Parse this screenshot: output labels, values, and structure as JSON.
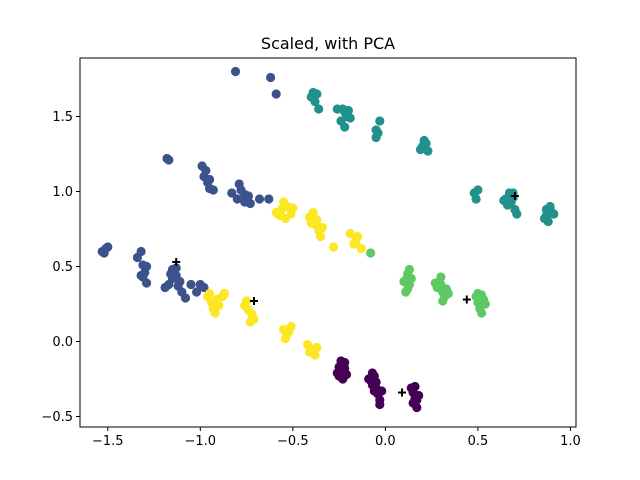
{
  "chart_data": {
    "type": "scatter",
    "title": "Scaled, with PCA",
    "xlabel": "",
    "ylabel": "",
    "xlim": [
      -1.65,
      1.03
    ],
    "ylim": [
      -0.57,
      1.89
    ],
    "xticks": [
      -1.5,
      -1.0,
      -0.5,
      0.0,
      0.5,
      1.0
    ],
    "xtick_labels": [
      "−1.5",
      "−1.0",
      "−0.5",
      "0.0",
      "0.5",
      "1.0"
    ],
    "yticks": [
      -0.5,
      0.0,
      0.5,
      1.0,
      1.5
    ],
    "ytick_labels": [
      "−0.5",
      "0.0",
      "0.5",
      "1.0",
      "1.5"
    ],
    "grid": false,
    "legend": "none",
    "colors": {
      "cluster0": "#440154",
      "cluster1": "#3b528b",
      "cluster2": "#21918c",
      "cluster3": "#5ec962",
      "cluster4": "#fde725",
      "centroid": "#000000"
    },
    "series": [
      {
        "cluster": 0,
        "points": [
          [
            -0.24,
            -0.2
          ],
          [
            -0.23,
            -0.16
          ],
          [
            -0.25,
            -0.23
          ],
          [
            -0.22,
            -0.18
          ],
          [
            -0.24,
            -0.13
          ],
          [
            -0.21,
            -0.22
          ],
          [
            -0.26,
            -0.21
          ],
          [
            -0.23,
            -0.25
          ],
          [
            -0.22,
            -0.14
          ],
          [
            -0.25,
            -0.17
          ],
          [
            -0.08,
            -0.26
          ],
          [
            -0.07,
            -0.29
          ],
          [
            -0.05,
            -0.31
          ],
          [
            -0.09,
            -0.25
          ],
          [
            -0.06,
            -0.23
          ],
          [
            -0.04,
            -0.35
          ],
          [
            -0.03,
            -0.39
          ],
          [
            -0.07,
            -0.21
          ],
          [
            -0.02,
            -0.33
          ],
          [
            -0.05,
            -0.27
          ],
          [
            -0.06,
            -0.33
          ],
          [
            -0.03,
            -0.42
          ],
          [
            0.15,
            -0.34
          ],
          [
            0.16,
            -0.38
          ],
          [
            0.17,
            -0.44
          ],
          [
            0.14,
            -0.31
          ],
          [
            0.18,
            -0.36
          ],
          [
            0.15,
            -0.41
          ],
          [
            0.16,
            -0.3
          ],
          [
            0.17,
            -0.39
          ]
        ]
      },
      {
        "cluster": 1,
        "points": [
          [
            -0.81,
            1.8
          ],
          [
            -0.62,
            1.76
          ],
          [
            -0.59,
            1.65
          ],
          [
            -1.18,
            1.22
          ],
          [
            -1.17,
            1.21
          ],
          [
            -0.99,
            1.17
          ],
          [
            -0.97,
            1.14
          ],
          [
            -0.98,
            1.1
          ],
          [
            -0.96,
            1.06
          ],
          [
            -0.95,
            1.02
          ],
          [
            -0.93,
            1.01
          ],
          [
            -0.95,
            1.08
          ],
          [
            -0.83,
            0.99
          ],
          [
            -0.79,
            1.05
          ],
          [
            -0.78,
            1.01
          ],
          [
            -0.76,
            0.98
          ],
          [
            -0.74,
            0.97
          ],
          [
            -0.8,
            0.95
          ],
          [
            -0.76,
            0.93
          ],
          [
            -0.73,
            0.92
          ],
          [
            -0.68,
            0.95
          ],
          [
            -0.63,
            0.95
          ],
          [
            -1.53,
            0.6
          ],
          [
            -1.51,
            0.62
          ],
          [
            -1.52,
            0.59
          ],
          [
            -1.5,
            0.63
          ],
          [
            -1.34,
            0.56
          ],
          [
            -1.31,
            0.51
          ],
          [
            -1.3,
            0.46
          ],
          [
            -1.32,
            0.44
          ],
          [
            -1.29,
            0.5
          ],
          [
            -1.31,
            0.43
          ],
          [
            -1.29,
            0.39
          ],
          [
            -1.32,
            0.6
          ],
          [
            -1.19,
            0.36
          ],
          [
            -1.17,
            0.38
          ],
          [
            -1.15,
            0.42
          ],
          [
            -1.13,
            0.44
          ],
          [
            -1.12,
            0.37
          ],
          [
            -1.1,
            0.33
          ],
          [
            -1.08,
            0.29
          ],
          [
            -1.11,
            0.4
          ],
          [
            -1.15,
            0.48
          ],
          [
            -1.13,
            0.49
          ],
          [
            -1.16,
            0.45
          ],
          [
            -1.05,
            0.38
          ],
          [
            -1.0,
            0.38
          ],
          [
            -0.98,
            0.36
          ],
          [
            -1.02,
            0.33
          ]
        ]
      },
      {
        "cluster": 2,
        "points": [
          [
            -0.39,
            1.66
          ],
          [
            -0.4,
            1.63
          ],
          [
            -0.37,
            1.65
          ],
          [
            -0.38,
            1.6
          ],
          [
            -0.36,
            1.55
          ],
          [
            -0.26,
            1.55
          ],
          [
            -0.22,
            1.53
          ],
          [
            -0.21,
            1.5
          ],
          [
            -0.23,
            1.55
          ],
          [
            -0.19,
            1.49
          ],
          [
            -0.2,
            1.54
          ],
          [
            -0.24,
            1.47
          ],
          [
            -0.22,
            1.43
          ],
          [
            -0.05,
            1.41
          ],
          [
            -0.04,
            1.39
          ],
          [
            -0.03,
            1.47
          ],
          [
            -0.05,
            1.36
          ],
          [
            0.19,
            1.28
          ],
          [
            0.21,
            1.34
          ],
          [
            0.22,
            1.32
          ],
          [
            0.2,
            1.3
          ],
          [
            0.23,
            1.27
          ],
          [
            0.48,
            0.99
          ],
          [
            0.5,
            1.01
          ],
          [
            0.49,
            0.95
          ],
          [
            0.65,
            0.95
          ],
          [
            0.67,
            0.99
          ],
          [
            0.68,
            0.93
          ],
          [
            0.66,
            0.91
          ],
          [
            0.69,
            0.96
          ],
          [
            0.7,
            0.88
          ],
          [
            0.71,
            0.85
          ],
          [
            0.69,
            0.99
          ],
          [
            0.64,
            0.94
          ],
          [
            0.87,
            0.84
          ],
          [
            0.88,
            0.87
          ],
          [
            0.89,
            0.9
          ],
          [
            0.86,
            0.82
          ],
          [
            0.9,
            0.86
          ],
          [
            0.91,
            0.85
          ],
          [
            0.88,
            0.8
          ],
          [
            0.87,
            0.88
          ]
        ]
      },
      {
        "cluster": 3,
        "points": [
          [
            -0.08,
            0.59
          ],
          [
            0.11,
            0.41
          ],
          [
            0.12,
            0.45
          ],
          [
            0.13,
            0.38
          ],
          [
            0.1,
            0.4
          ],
          [
            0.13,
            0.48
          ],
          [
            0.12,
            0.35
          ],
          [
            0.14,
            0.42
          ],
          [
            0.11,
            0.33
          ],
          [
            0.27,
            0.39
          ],
          [
            0.29,
            0.37
          ],
          [
            0.31,
            0.33
          ],
          [
            0.3,
            0.43
          ],
          [
            0.32,
            0.3
          ],
          [
            0.33,
            0.35
          ],
          [
            0.28,
            0.36
          ],
          [
            0.31,
            0.27
          ],
          [
            0.34,
            0.32
          ],
          [
            0.3,
            0.38
          ],
          [
            0.49,
            0.3
          ],
          [
            0.5,
            0.26
          ],
          [
            0.52,
            0.31
          ],
          [
            0.51,
            0.22
          ],
          [
            0.53,
            0.28
          ],
          [
            0.52,
            0.19
          ],
          [
            0.5,
            0.32
          ],
          [
            0.54,
            0.25
          ],
          [
            0.51,
            0.29
          ]
        ]
      },
      {
        "cluster": 4,
        "points": [
          [
            -0.59,
            0.86
          ],
          [
            -0.56,
            0.88
          ],
          [
            -0.55,
            0.93
          ],
          [
            -0.53,
            0.9
          ],
          [
            -0.51,
            0.85
          ],
          [
            -0.54,
            0.82
          ],
          [
            -0.57,
            0.84
          ],
          [
            -0.5,
            0.89
          ],
          [
            -0.41,
            0.83
          ],
          [
            -0.39,
            0.86
          ],
          [
            -0.4,
            0.79
          ],
          [
            -0.37,
            0.81
          ],
          [
            -0.36,
            0.74
          ],
          [
            -0.35,
            0.7
          ],
          [
            -0.34,
            0.76
          ],
          [
            -0.38,
            0.78
          ],
          [
            -0.28,
            0.63
          ],
          [
            -0.19,
            0.72
          ],
          [
            -0.16,
            0.67
          ],
          [
            -0.15,
            0.7
          ],
          [
            -0.17,
            0.65
          ],
          [
            -0.13,
            0.62
          ],
          [
            -0.96,
            0.3
          ],
          [
            -0.94,
            0.26
          ],
          [
            -0.93,
            0.22
          ],
          [
            -0.95,
            0.32
          ],
          [
            -0.91,
            0.28
          ],
          [
            -0.9,
            0.24
          ],
          [
            -0.88,
            0.3
          ],
          [
            -0.87,
            0.32
          ],
          [
            -0.92,
            0.19
          ],
          [
            -0.76,
            0.24
          ],
          [
            -0.74,
            0.21
          ],
          [
            -0.72,
            0.18
          ],
          [
            -0.75,
            0.27
          ],
          [
            -0.71,
            0.15
          ],
          [
            -0.73,
            0.13
          ],
          [
            -0.55,
            0.08
          ],
          [
            -0.53,
            0.05
          ],
          [
            -0.51,
            0.1
          ],
          [
            -0.54,
            0.02
          ],
          [
            -0.52,
            0.07
          ],
          [
            -0.42,
            -0.02
          ],
          [
            -0.4,
            -0.05
          ],
          [
            -0.38,
            -0.09
          ],
          [
            -0.41,
            -0.07
          ],
          [
            -0.37,
            -0.04
          ]
        ]
      }
    ],
    "centroids": [
      [
        -1.13,
        0.53
      ],
      [
        -0.71,
        0.27
      ],
      [
        0.09,
        -0.34
      ],
      [
        0.44,
        0.28
      ],
      [
        0.7,
        0.97
      ]
    ]
  }
}
